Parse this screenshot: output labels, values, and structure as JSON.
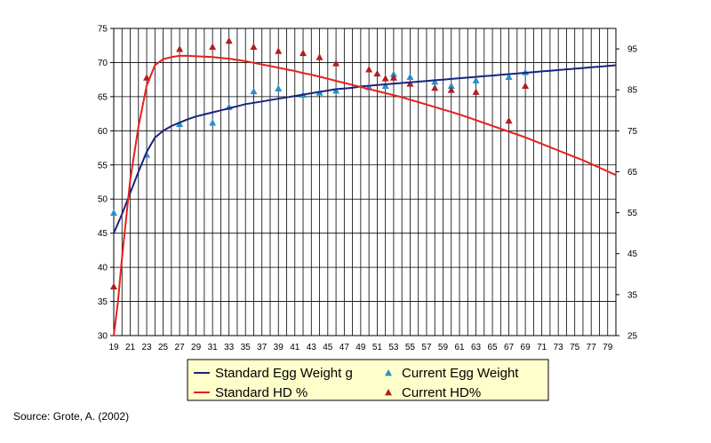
{
  "chart_data": {
    "type": "line",
    "x_ticks": [
      "19",
      "21",
      "23",
      "25",
      "27",
      "29",
      "31",
      "33",
      "35",
      "37",
      "39",
      "41",
      "43",
      "45",
      "47",
      "49",
      "51",
      "53",
      "55",
      "57",
      "59",
      "61",
      "63",
      "65",
      "67",
      "69",
      "71",
      "73",
      "75",
      "77",
      "79"
    ],
    "xlim": [
      19,
      80
    ],
    "y_left": {
      "range": [
        30,
        75
      ],
      "ticks": [
        "30",
        "35",
        "40",
        "45",
        "50",
        "55",
        "60",
        "65",
        "70",
        "75"
      ]
    },
    "y_right": {
      "range": [
        25,
        100
      ],
      "ticks": [
        "25",
        "35",
        "45",
        "55",
        "65",
        "75",
        "85",
        "95"
      ]
    },
    "grid": true,
    "legend_position": "bottom",
    "series": [
      {
        "name": "Standard Egg Weight g",
        "kind": "line",
        "axis": "left",
        "color": "#1a237e",
        "x": [
          19,
          20,
          21,
          22,
          23,
          24,
          25,
          26,
          27,
          28,
          29,
          30,
          31,
          32,
          33,
          34,
          35,
          36,
          37,
          38,
          39,
          40,
          41,
          42,
          43,
          44,
          45,
          46,
          47,
          48,
          49,
          50,
          51,
          52,
          53,
          54,
          55,
          56,
          57,
          58,
          59,
          60,
          61,
          62,
          63,
          64,
          65,
          66,
          67,
          68,
          69,
          70,
          71,
          72,
          73,
          74,
          75,
          76,
          77,
          78,
          79,
          80
        ],
        "y": [
          45.0,
          47.8,
          50.9,
          54.0,
          56.9,
          59.0,
          60.0,
          60.7,
          61.2,
          61.7,
          62.1,
          62.4,
          62.7,
          63.0,
          63.3,
          63.6,
          63.9,
          64.1,
          64.3,
          64.5,
          64.7,
          64.9,
          65.1,
          65.3,
          65.5,
          65.7,
          65.9,
          66.1,
          66.2,
          66.3,
          66.5,
          66.6,
          66.7,
          66.8,
          66.9,
          67.0,
          67.1,
          67.2,
          67.3,
          67.4,
          67.5,
          67.6,
          67.7,
          67.8,
          67.9,
          68.0,
          68.1,
          68.2,
          68.3,
          68.4,
          68.5,
          68.6,
          68.7,
          68.8,
          68.9,
          69.0,
          69.1,
          69.2,
          69.3,
          69.4,
          69.5,
          69.6
        ]
      },
      {
        "name": "Current Egg Weight",
        "kind": "marker",
        "axis": "left",
        "color": "#2b8fc7",
        "x": [
          19,
          23,
          27,
          31,
          33,
          36,
          39,
          42,
          44,
          46,
          50,
          52,
          53,
          55,
          58,
          60,
          63,
          67,
          69
        ],
        "y": [
          48.0,
          56.5,
          61.0,
          61.2,
          63.5,
          65.8,
          66.2,
          65.3,
          65.6,
          65.9,
          66.4,
          66.6,
          68.3,
          67.9,
          67.2,
          66.6,
          67.4,
          67.9,
          68.6
        ]
      },
      {
        "name": "Standard HD %",
        "kind": "line",
        "axis": "right",
        "color": "#e8201c",
        "x": [
          19,
          19.5,
          20,
          21,
          22,
          23,
          24,
          25,
          26,
          27,
          28,
          29,
          30,
          31,
          32,
          33,
          34,
          35,
          36,
          37,
          38,
          39,
          40,
          41,
          42,
          43,
          44,
          45,
          46,
          47,
          48,
          49,
          50,
          51,
          52,
          53,
          54,
          55,
          56,
          57,
          58,
          59,
          60,
          61,
          62,
          63,
          64,
          65,
          66,
          67,
          68,
          69,
          70,
          71,
          72,
          73,
          74,
          75,
          76,
          77,
          78,
          79,
          80
        ],
        "y": [
          25,
          33,
          44,
          63,
          76,
          86,
          91,
          92.5,
          93,
          93.3,
          93.3,
          93.2,
          93.1,
          93,
          92.8,
          92.6,
          92.3,
          92,
          91.6,
          91.2,
          90.8,
          90.4,
          90,
          89.6,
          89.1,
          88.7,
          88.2,
          87.7,
          87.2,
          86.7,
          86.2,
          85.7,
          85.2,
          84.7,
          84.2,
          83.7,
          83.2,
          82.6,
          82,
          81.4,
          80.8,
          80.2,
          79.6,
          79,
          78.3,
          77.6,
          76.9,
          76.2,
          75.5,
          74.8,
          74.1,
          73.4,
          72.6,
          71.8,
          71,
          70.2,
          69.4,
          68.6,
          67.8,
          66.9,
          66,
          65.1,
          64.2
        ]
      },
      {
        "name": "Current HD%",
        "kind": "marker",
        "axis": "right",
        "color": "#b01e1e",
        "x": [
          19,
          23,
          27,
          31,
          33,
          36,
          39,
          42,
          44,
          46,
          50,
          51,
          52,
          53,
          55,
          58,
          60,
          63,
          67,
          69
        ],
        "y": [
          37,
          88,
          95,
          95.5,
          97,
          95.5,
          94.5,
          94,
          93,
          91.5,
          90,
          89,
          87.8,
          88,
          86.5,
          85.5,
          85,
          84.5,
          77.5,
          86
        ]
      }
    ]
  },
  "source_text": "Source: Grote, A. (2002)"
}
